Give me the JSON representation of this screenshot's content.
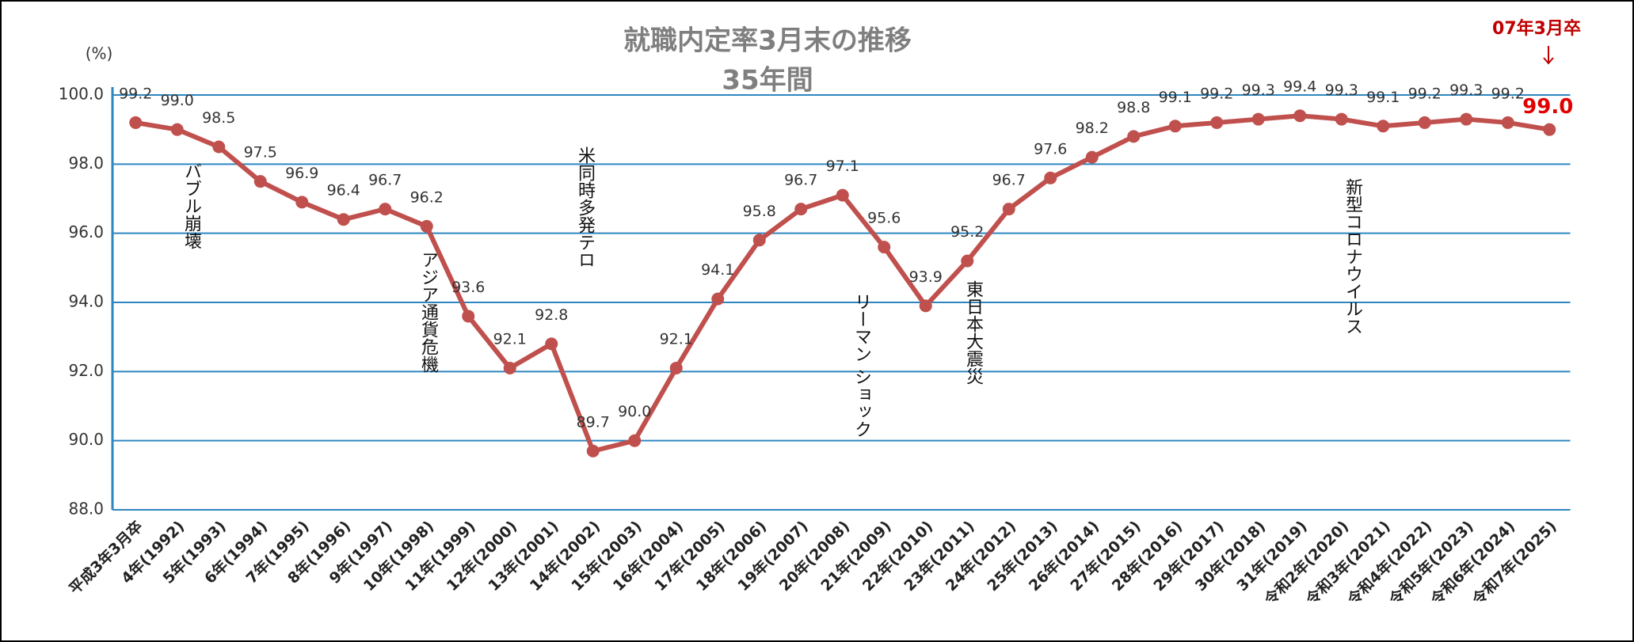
{
  "chart_data": {
    "type": "line",
    "title": "就職内定率3月末の推移",
    "subtitle": "35年間",
    "y_label": "(%)",
    "corner_note": "07年3月卒",
    "categories": [
      "平成3年3月卒",
      "4年(1992)",
      "5年(1993)",
      "6年(1994)",
      "7年(1995)",
      "8年(1996)",
      "9年(1997)",
      "10年(1998)",
      "11年(1999)",
      "12年(2000)",
      "13年(2001)",
      "14年(2002)",
      "15年(2003)",
      "16年(2004)",
      "17年(2005)",
      "18年(2006)",
      "19年(2007)",
      "20年(2008)",
      "21年(2009)",
      "22年(2010)",
      "23年(2011)",
      "24年(2012)",
      "25年(2013)",
      "26年(2014)",
      "27年(2015)",
      "28年(2016)",
      "29年(2017)",
      "30年(2018)",
      "31年(2019)",
      "令和2年(2020)",
      "令和3年(2021)",
      "令和4年(2022)",
      "令和5年(2023)",
      "令和6年(2024)",
      "令和7年(2025)"
    ],
    "series": [
      {
        "name": "就職内定率",
        "color": "#c0504d",
        "values": [
          99.2,
          99.0,
          98.5,
          97.5,
          96.9,
          96.4,
          96.7,
          96.2,
          93.6,
          92.1,
          92.8,
          89.7,
          90.0,
          92.1,
          94.1,
          95.8,
          96.7,
          97.1,
          95.6,
          93.9,
          95.2,
          96.7,
          97.6,
          98.2,
          98.8,
          99.1,
          99.2,
          99.3,
          99.4,
          99.3,
          99.1,
          99.2,
          99.3,
          99.2,
          99.0
        ],
        "value_labels": [
          "99.2",
          "99.0",
          "98.5",
          "97.5",
          "96.9",
          "96.4",
          "96.7",
          "96.2",
          "93.6",
          "92.1",
          "92.8",
          "89.7",
          "90.0",
          "92.1",
          "94.1",
          "95.8",
          "96.7",
          "97.1",
          "95.6",
          "93.9",
          "95.2",
          "96.7",
          "97.6",
          "98.2",
          "98.8",
          "99.1",
          "99.2",
          "99.3",
          "99.4",
          "99.3",
          "99.1",
          "99.2",
          "99.3",
          "99.2",
          "99.0"
        ]
      }
    ],
    "ylim": [
      88,
      100
    ],
    "yticks": [
      {
        "value": 88,
        "label": "88.0"
      },
      {
        "value": 90,
        "label": "90.0"
      },
      {
        "value": 92,
        "label": "92.0"
      },
      {
        "value": 94,
        "label": "94.0"
      },
      {
        "value": 96,
        "label": "96.0"
      },
      {
        "value": 98,
        "label": "98.0"
      },
      {
        "value": 100,
        "label": "100.0"
      }
    ],
    "grid": true,
    "annotations": [
      "バブル崩壊",
      "アジア通貨危機",
      "米同時多発テロ",
      "リーマン ショック",
      "東日本大震災",
      "新型コロナウイルス"
    ]
  }
}
